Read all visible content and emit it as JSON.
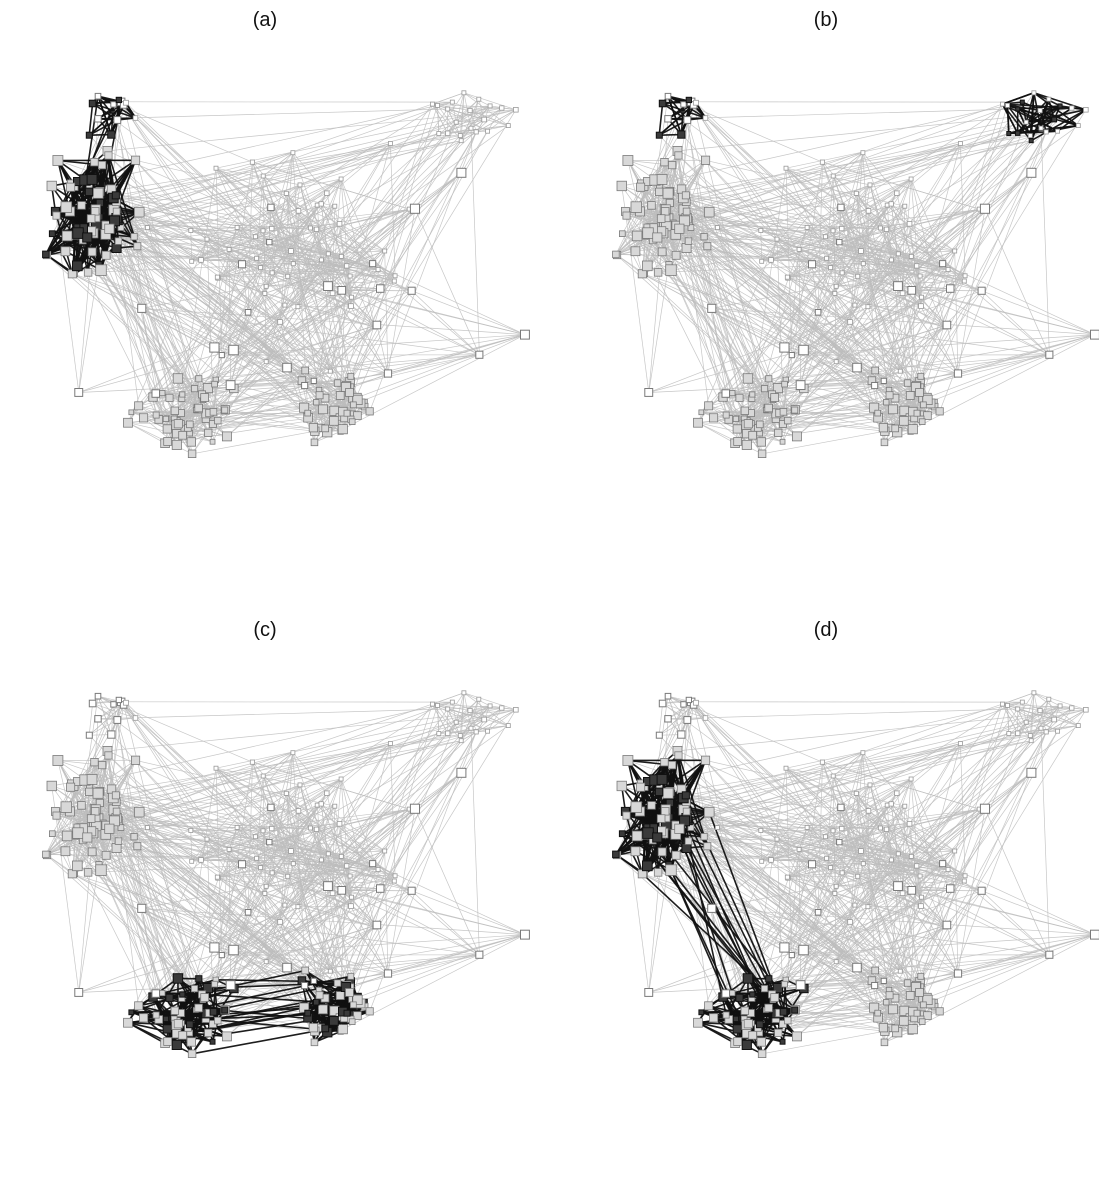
{
  "figure": {
    "panels": [
      {
        "id": "a",
        "label": "(a)"
      },
      {
        "id": "b",
        "label": "(b)"
      },
      {
        "id": "c",
        "label": "(c)"
      },
      {
        "id": "d",
        "label": "(d)"
      }
    ],
    "colors": {
      "background": "#ffffff",
      "light_edge": "#bdbdbd",
      "dark_edge": "#111111",
      "hollow_node_stroke": "#7a7a7a",
      "highlight_node_fill": "#3a3a3a"
    }
  }
}
